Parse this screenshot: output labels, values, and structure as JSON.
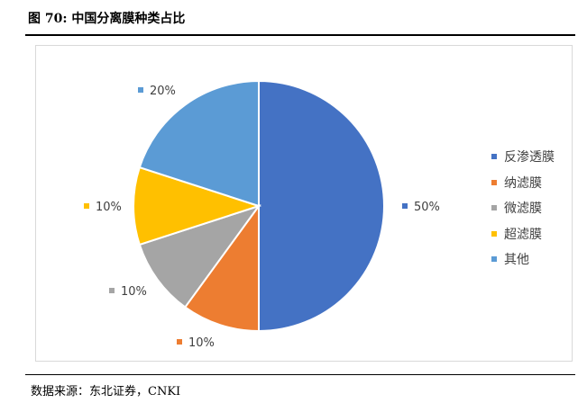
{
  "figure": {
    "title": "图 70:  中国分离膜种类占比",
    "source": "数据来源：东北证券，CNKI"
  },
  "chart_data": {
    "type": "pie",
    "title": "",
    "categories": [
      "反渗透膜",
      "纳滤膜",
      "微滤膜",
      "超滤膜",
      "其他"
    ],
    "values": [
      50,
      10,
      10,
      10,
      20
    ],
    "labels": [
      "50%",
      "10%",
      "10%",
      "10%",
      "20%"
    ],
    "colors": [
      "#4472C4",
      "#ED7D31",
      "#A5A5A5",
      "#FFC000",
      "#5B9BD5"
    ],
    "legend_position": "right",
    "start_angle": "12 o'clock, clockwise"
  }
}
